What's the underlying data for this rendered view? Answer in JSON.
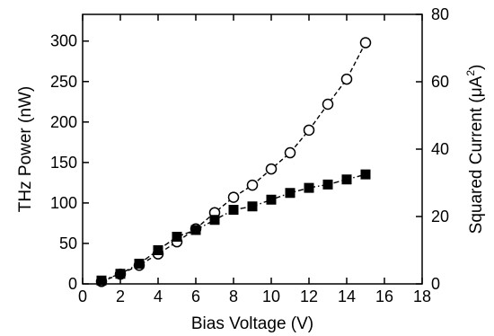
{
  "chart_data": {
    "type": "line",
    "title": "",
    "xlabel": "Bias Voltage (V)",
    "ylabel_left": "THz Power (nW)",
    "ylabel_right_prefix": "Squared Current (",
    "ylabel_right_mu": "μ",
    "ylabel_right_unit": "A",
    "ylabel_right_exp": "2",
    "ylabel_right_suffix": ")",
    "xlim": [
      0,
      18
    ],
    "ylim_left": [
      0,
      333
    ],
    "ylim_right": [
      0,
      80
    ],
    "x_ticks": [
      "0",
      "2",
      "4",
      "6",
      "8",
      "10",
      "12",
      "14",
      "16",
      "18"
    ],
    "y_ticks_left": [
      "0",
      "50",
      "100",
      "150",
      "200",
      "250",
      "300"
    ],
    "y_ticks_right": [
      "0",
      "20",
      "40",
      "60",
      "80"
    ],
    "grid": false,
    "legend": "none",
    "series": [
      {
        "marker": "open-circle",
        "line_style": "dashed",
        "axis": "left",
        "color": "#000000",
        "x": [
          1,
          2,
          3,
          4,
          5,
          6,
          7,
          8,
          9,
          10,
          11,
          12,
          13,
          14,
          15
        ],
        "y": [
          3,
          12,
          23,
          37,
          52,
          68,
          88,
          107,
          122,
          142,
          162,
          190,
          222,
          253,
          298
        ]
      },
      {
        "marker": "filled-square",
        "line_style": "dash-dot",
        "axis": "right",
        "color": "#000000",
        "x": [
          1,
          2,
          3,
          4,
          5,
          6,
          7,
          8,
          9,
          10,
          11,
          12,
          13,
          14,
          15
        ],
        "y": [
          1,
          3,
          6,
          10,
          14,
          16,
          19,
          22,
          23,
          25,
          27,
          28.5,
          29.5,
          31,
          32.5
        ]
      }
    ]
  }
}
